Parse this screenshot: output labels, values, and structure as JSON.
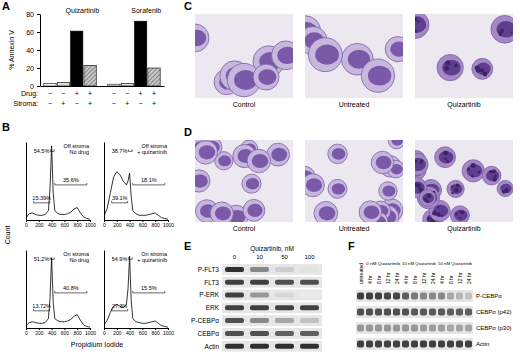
{
  "panel_labels": [
    "A",
    "B",
    "C",
    "D",
    "E",
    "F"
  ],
  "chart_data": [
    {
      "type": "bar",
      "y_label": "% Annexin V",
      "categories": [
        "Quizartinib",
        "Sorafenib"
      ],
      "series": [
        {
          "color": "#ffffff",
          "values": [
            3,
            2
          ]
        },
        {
          "color": "#d9d9d9",
          "values": [
            4,
            3
          ]
        },
        {
          "color": "#000000",
          "values": [
            61,
            72
          ]
        },
        {
          "color": "#c8c8c8",
          "line_style": "hatched",
          "values": [
            23,
            20
          ]
        }
      ],
      "ylim": [
        0,
        80
      ],
      "yticks": [
        0,
        20,
        40,
        60,
        80
      ],
      "tick_labels": "y",
      "condition_table": [
        {
          "label": "Drug:",
          "signs": [
            "−",
            "−",
            "+",
            "+",
            "−",
            "−",
            "+",
            "+"
          ]
        },
        {
          "label": "Stroma:",
          "signs": [
            "−",
            "+",
            "−",
            "+",
            "−",
            "+",
            "−",
            "+"
          ]
        }
      ]
    },
    {
      "type": "line",
      "title": "Off stroma",
      "subtitle": "No drug",
      "x": [
        0,
        50,
        100,
        150,
        200,
        250,
        300,
        350,
        375,
        400,
        425,
        450,
        500,
        550,
        600,
        650,
        700,
        750,
        800,
        850,
        900,
        950,
        1000
      ],
      "series": [
        {
          "color": "#000000",
          "values": [
            3,
            8,
            9,
            7,
            6,
            6,
            7,
            12,
            40,
            95,
            35,
            12,
            8,
            7,
            7,
            8,
            10,
            14,
            16,
            9,
            4,
            2,
            1
          ]
        }
      ],
      "xlim": [
        0,
        1000
      ],
      "xticks": [
        0,
        200,
        400,
        600,
        800,
        1000
      ],
      "ylim": [
        0,
        100
      ],
      "tick_labels": "x",
      "gates": [
        {
          "text": "54.5%",
          "x": [
            380,
            440
          ]
        },
        {
          "text": "15.39%",
          "x": [
            120,
            370
          ]
        },
        {
          "text": "35.6%",
          "x": [
            450,
            950
          ]
        }
      ]
    },
    {
      "type": "line",
      "title": "Off stroma",
      "subtitle": "+ quizartinib",
      "x": [
        0,
        50,
        100,
        150,
        200,
        250,
        300,
        350,
        375,
        400,
        425,
        450,
        500,
        550,
        600,
        650,
        700,
        750,
        800,
        850,
        900,
        950,
        1000
      ],
      "series": [
        {
          "color": "#000000",
          "values": [
            5,
            15,
            35,
            55,
            62,
            58,
            50,
            45,
            50,
            60,
            30,
            12,
            8,
            6,
            6,
            6,
            7,
            8,
            9,
            6,
            3,
            2,
            1
          ]
        }
      ],
      "xlim": [
        0,
        1000
      ],
      "xticks": [
        0,
        200,
        400,
        600,
        800,
        1000
      ],
      "ylim": [
        0,
        100
      ],
      "tick_labels": "x",
      "gates": [
        {
          "text": "38.7%",
          "x": [
            380,
            440
          ]
        },
        {
          "text": "39.1%",
          "x": [
            120,
            370
          ]
        },
        {
          "text": "18.1%",
          "x": [
            450,
            950
          ]
        }
      ]
    },
    {
      "type": "line",
      "title": "On stroma",
      "subtitle": "No drug",
      "x": [
        0,
        50,
        100,
        150,
        200,
        250,
        300,
        350,
        375,
        400,
        425,
        450,
        500,
        550,
        600,
        650,
        700,
        750,
        800,
        850,
        900,
        950,
        1000
      ],
      "series": [
        {
          "color": "#000000",
          "values": [
            3,
            7,
            8,
            7,
            6,
            6,
            7,
            12,
            38,
            90,
            33,
            12,
            9,
            8,
            8,
            9,
            11,
            15,
            17,
            10,
            4,
            2,
            1
          ]
        }
      ],
      "xlim": [
        0,
        1000
      ],
      "xticks": [
        0,
        200,
        400,
        600,
        800,
        1000
      ],
      "ylim": [
        0,
        100
      ],
      "tick_labels": "x",
      "gates": [
        {
          "text": "51.2%",
          "x": [
            380,
            440
          ]
        },
        {
          "text": "13.72%",
          "x": [
            120,
            370
          ]
        },
        {
          "text": "40.8%",
          "x": [
            450,
            950
          ]
        }
      ]
    },
    {
      "type": "line",
      "title": "On stroma",
      "subtitle": "+ quizartinib",
      "x": [
        0,
        50,
        100,
        150,
        200,
        250,
        300,
        350,
        375,
        400,
        425,
        450,
        500,
        550,
        600,
        650,
        700,
        750,
        800,
        850,
        900,
        950,
        1000
      ],
      "series": [
        {
          "color": "#000000",
          "values": [
            4,
            10,
            20,
            28,
            30,
            28,
            26,
            30,
            50,
            92,
            35,
            12,
            8,
            7,
            6,
            6,
            7,
            8,
            9,
            6,
            3,
            2,
            1
          ]
        }
      ],
      "xlim": [
        0,
        1000
      ],
      "xticks": [
        0,
        200,
        400,
        600,
        800,
        1000
      ],
      "ylim": [
        0,
        100
      ],
      "tick_labels": "x",
      "gates": [
        {
          "text": "54.9%",
          "x": [
            380,
            440
          ]
        },
        {
          "text": "27.3%",
          "x": [
            120,
            370
          ]
        },
        {
          "text": "15.5%",
          "x": [
            450,
            950
          ]
        }
      ]
    }
  ],
  "panel_b": {
    "x_label": "Propidium Iodide",
    "y_label": "Count"
  },
  "micrographs": [
    {
      "labels": [
        "Control",
        "Untreated",
        "Quizartinib"
      ]
    },
    {
      "labels": [
        "Control",
        "Untreated",
        "Quizartinib"
      ]
    }
  ],
  "blot_e": {
    "header": "Quizartinib, nM",
    "lanes": [
      "0",
      "10",
      "50",
      "100"
    ],
    "rows": [
      {
        "label": "P-FLT3",
        "intensity": [
          0.85,
          0.55,
          0.3,
          0.2
        ]
      },
      {
        "label": "FLT3",
        "intensity": [
          0.8,
          0.8,
          0.75,
          0.75
        ]
      },
      {
        "label": "P-ERK",
        "intensity": [
          0.8,
          0.5,
          0.25,
          0.15
        ]
      },
      {
        "label": "ERK",
        "intensity": [
          0.8,
          0.8,
          0.8,
          0.8
        ]
      },
      {
        "label": "P-CEBPα",
        "intensity": [
          0.75,
          0.55,
          0.45,
          0.35
        ]
      },
      {
        "label": "CEBPα",
        "intensity": [
          0.75,
          0.75,
          0.7,
          0.7
        ]
      },
      {
        "label": "Actin",
        "intensity": [
          0.85,
          0.85,
          0.85,
          0.85
        ]
      }
    ]
  },
  "blot_f": {
    "untreated": "untreated",
    "groups": [
      {
        "label": "0 nM Quizartinib",
        "times": [
          "4 hr",
          "8 hr",
          "12 hr",
          "24 hr"
        ]
      },
      {
        "label": "10 nM Quizartinib",
        "times": [
          "4 hr",
          "8 hr",
          "12 hr",
          "24 hr"
        ]
      },
      {
        "label": "50 nM Quizartinib",
        "times": [
          "4 hr",
          "8 hr",
          "12 hr",
          "24 hr"
        ]
      }
    ],
    "rows": [
      {
        "label": "P-CEBPα",
        "intensity": [
          0.8,
          0.8,
          0.8,
          0.78,
          0.78,
          0.7,
          0.6,
          0.55,
          0.55,
          0.55,
          0.45,
          0.4,
          0.35
        ]
      },
      {
        "label": "CEBPα (p42)",
        "intensity": [
          0.75,
          0.75,
          0.75,
          0.75,
          0.75,
          0.75,
          0.72,
          0.72,
          0.72,
          0.72,
          0.7,
          0.7,
          0.7
        ]
      },
      {
        "label": "CEBPα (p30)",
        "intensity": [
          0.5,
          0.5,
          0.5,
          0.5,
          0.5,
          0.5,
          0.5,
          0.48,
          0.48,
          0.48,
          0.45,
          0.45,
          0.45
        ]
      },
      {
        "label": "Actin",
        "intensity": [
          0.8,
          0.8,
          0.8,
          0.8,
          0.8,
          0.8,
          0.8,
          0.8,
          0.8,
          0.8,
          0.8,
          0.8,
          0.8
        ]
      }
    ]
  }
}
